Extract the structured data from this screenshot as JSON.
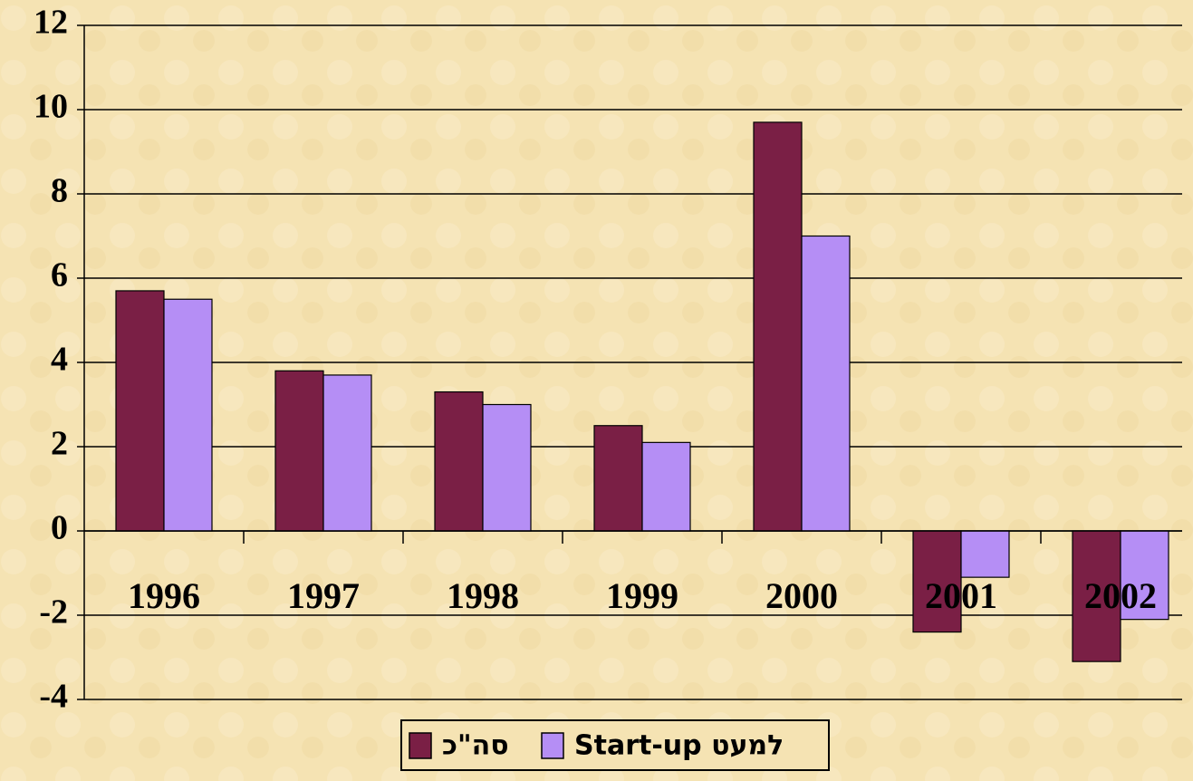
{
  "chart_data": {
    "type": "bar",
    "categories": [
      "1996",
      "1997",
      "1998",
      "1999",
      "2000",
      "2001",
      "2002"
    ],
    "series": [
      {
        "name": "סה\"כ",
        "color": "#7a1f45",
        "values": [
          5.7,
          3.8,
          3.3,
          2.5,
          9.7,
          -2.4,
          -3.1
        ]
      },
      {
        "name": "למעט Start-up",
        "color": "#b58ef5",
        "values": [
          5.5,
          3.7,
          3.0,
          2.1,
          7.0,
          -1.1,
          -2.1
        ]
      }
    ],
    "ylim": [
      -4,
      12
    ],
    "yticks": [
      -4,
      -2,
      0,
      2,
      4,
      6,
      8,
      10,
      12
    ],
    "grid": true
  }
}
